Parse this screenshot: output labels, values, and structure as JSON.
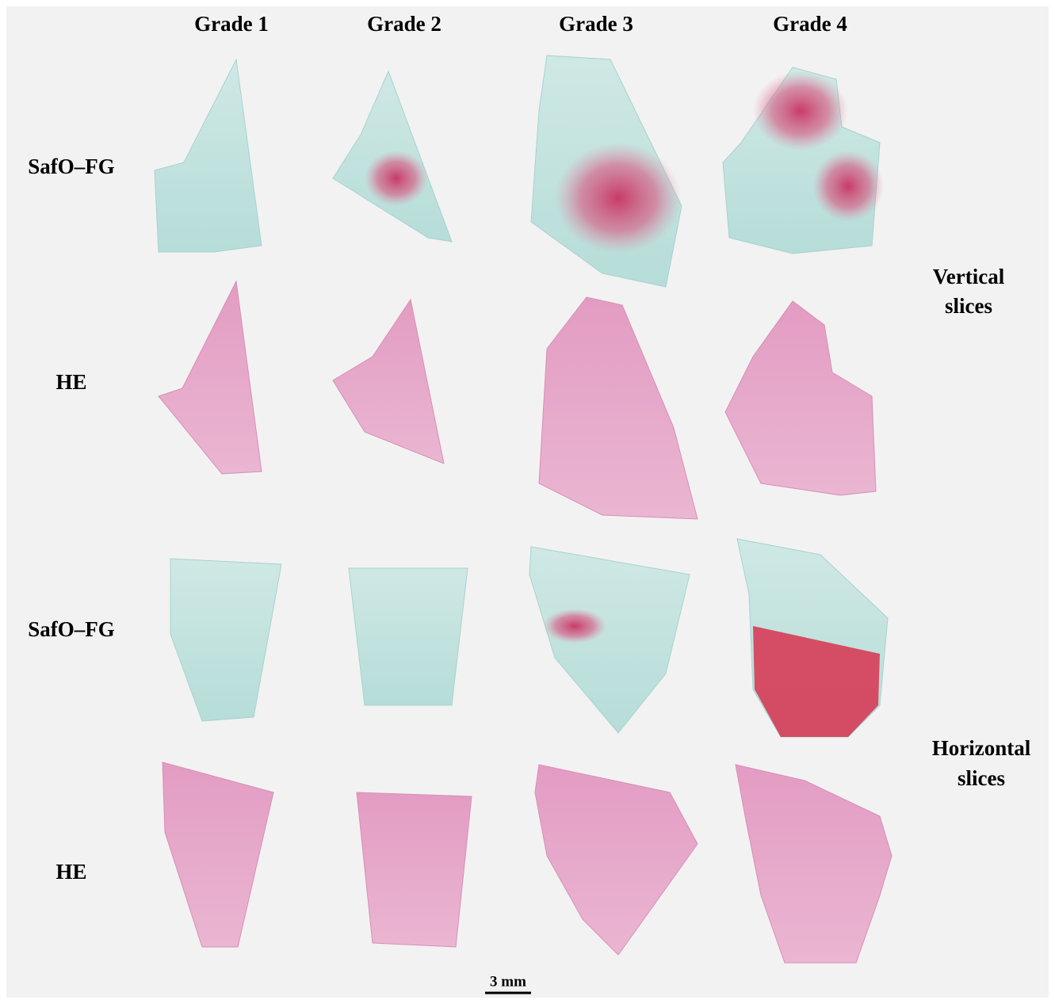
{
  "columns": [
    "Grade 1",
    "Grade 2",
    "Grade 3",
    "Grade 4"
  ],
  "rows": [
    "SafO–FG",
    "HE",
    "SafO–FG",
    "HE"
  ],
  "groups": [
    {
      "line1": "Vertical",
      "line2": "slices"
    },
    {
      "line1": "Horizontal",
      "line2": "slices"
    }
  ],
  "scale_bar": "3 mm"
}
